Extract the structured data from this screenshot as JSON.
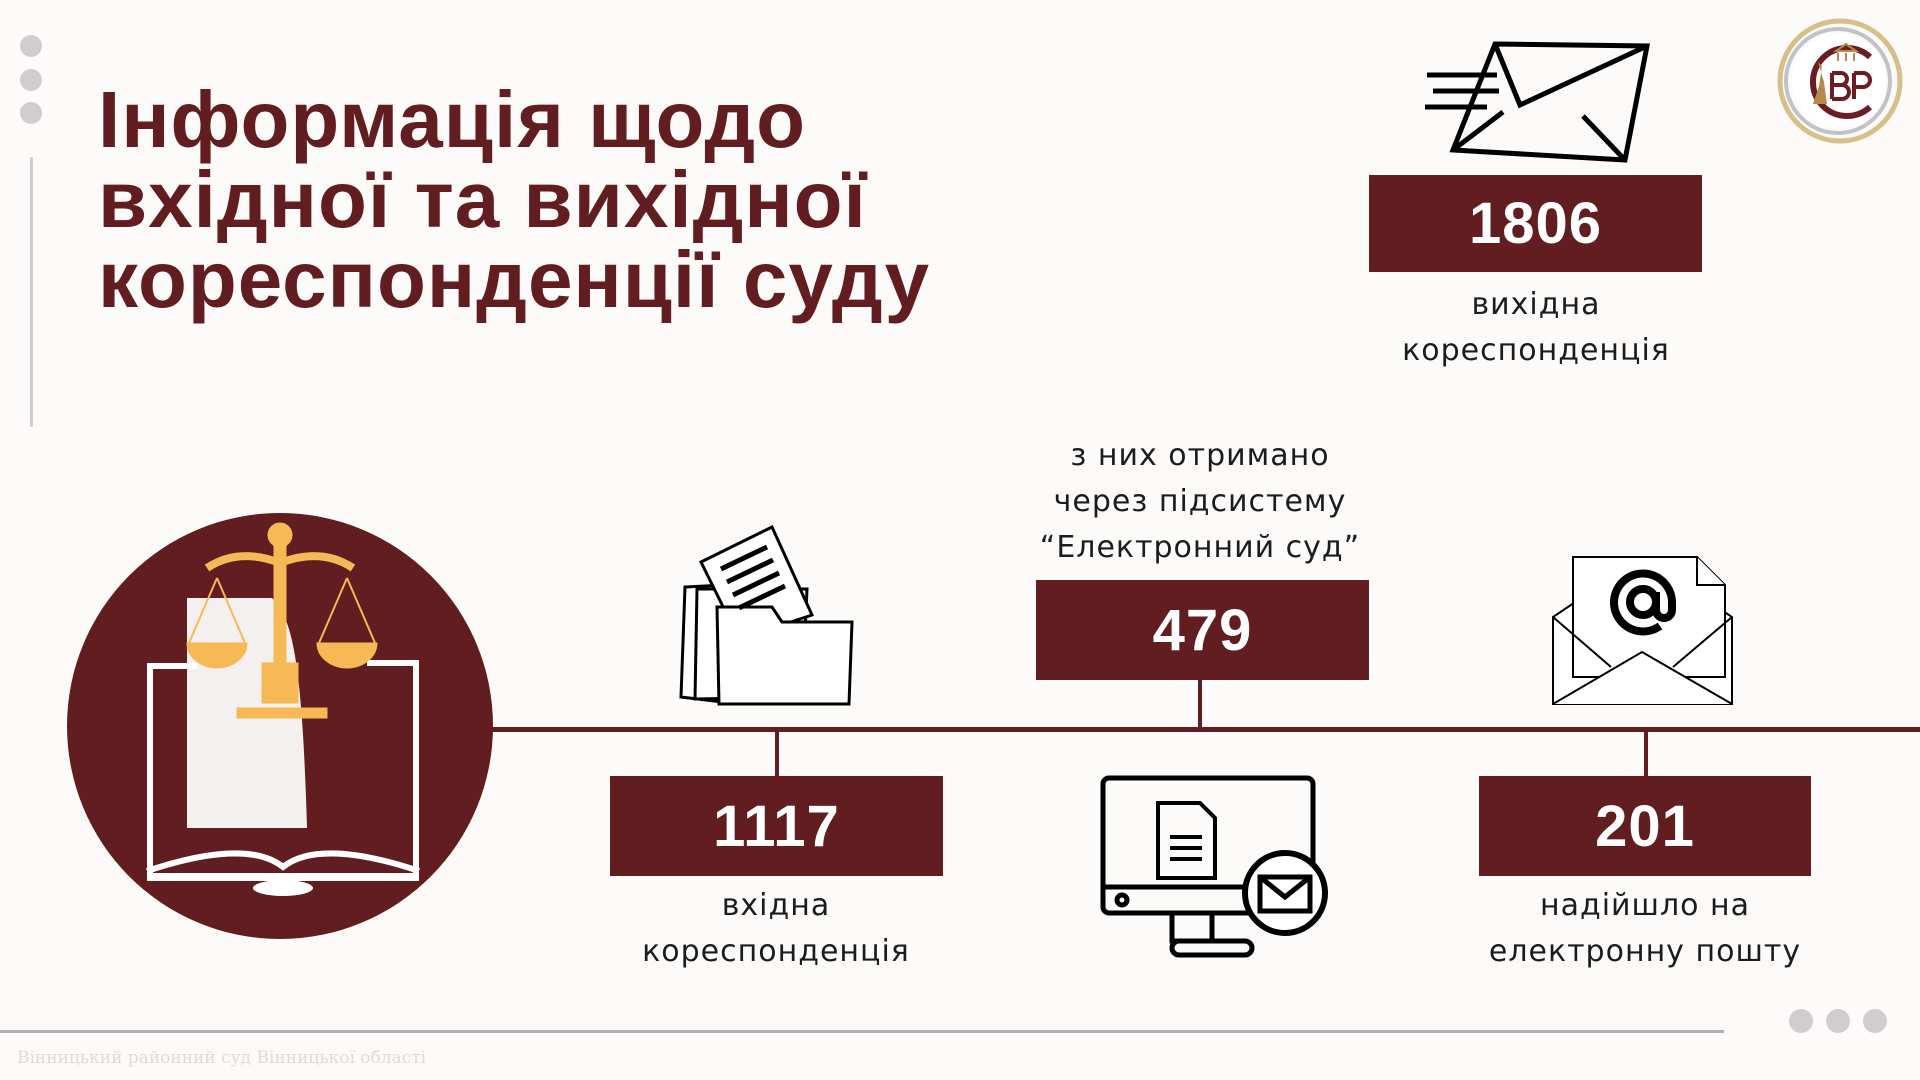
{
  "title": {
    "line1": "Інформація щодо",
    "line2": "вхідної та вихідної",
    "line3": "кореспонденції суду"
  },
  "outgoing": {
    "value": "1806",
    "label_line1": "вихідна",
    "label_line2": "кореспонденція",
    "icon": "flying-envelope-icon"
  },
  "incoming": {
    "value": "1117",
    "label_line1": "вхідна",
    "label_line2": "кореспонденція",
    "icon": "folder-documents-icon"
  },
  "electronic_court": {
    "caption_line1": "з них отримано",
    "caption_line2": "через підсистему",
    "caption_line3": "“Електронний суд”",
    "value": "479",
    "icon": "computer-mail-icon"
  },
  "email": {
    "value": "201",
    "label_line1": "надійшло на",
    "label_line2": "електронну пошту",
    "icon": "email-at-icon"
  },
  "logo": {
    "letters": "СВР"
  },
  "footer": {
    "text": "Вінницький районний суд Вінницької області"
  },
  "colors": {
    "accent": "#611d20",
    "gold": "#f6b955",
    "background": "#fdfbf9"
  }
}
